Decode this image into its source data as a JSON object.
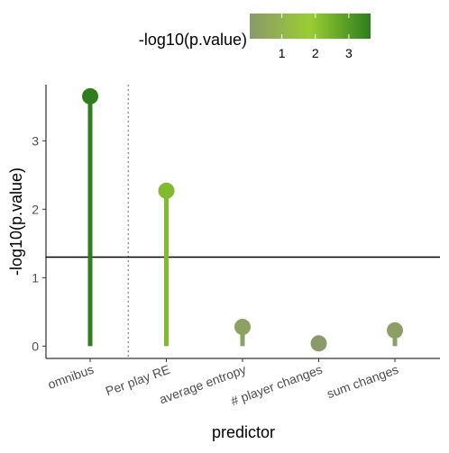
{
  "chart_data": {
    "type": "lollipop",
    "xlabel": "predictor",
    "ylabel": "-log10(p.value)",
    "categories": [
      "omnibus",
      "Per play RE",
      "average entropy",
      "# player changes",
      "sum changes"
    ],
    "values": [
      3.65,
      2.27,
      0.28,
      0.04,
      0.23
    ],
    "ylim": [
      -0.18,
      3.82
    ],
    "yticks": [
      0,
      1,
      2,
      3
    ],
    "ytick_labels": [
      "0",
      "1",
      "2",
      "3"
    ],
    "reference_line": 1.3,
    "separator_after_category": 0,
    "grid": false,
    "legend": {
      "title": "-log10(p.value)",
      "placement": "top",
      "ticks": [
        1,
        2,
        3
      ],
      "tick_labels": [
        "1",
        "2",
        "3"
      ],
      "range": [
        0.04,
        3.65
      ]
    },
    "colors": {
      "gradient": [
        "#8a9a6a",
        "#9acd32",
        "#2e7d1e"
      ],
      "reference_line": "#000000",
      "separator": "#888888"
    }
  }
}
